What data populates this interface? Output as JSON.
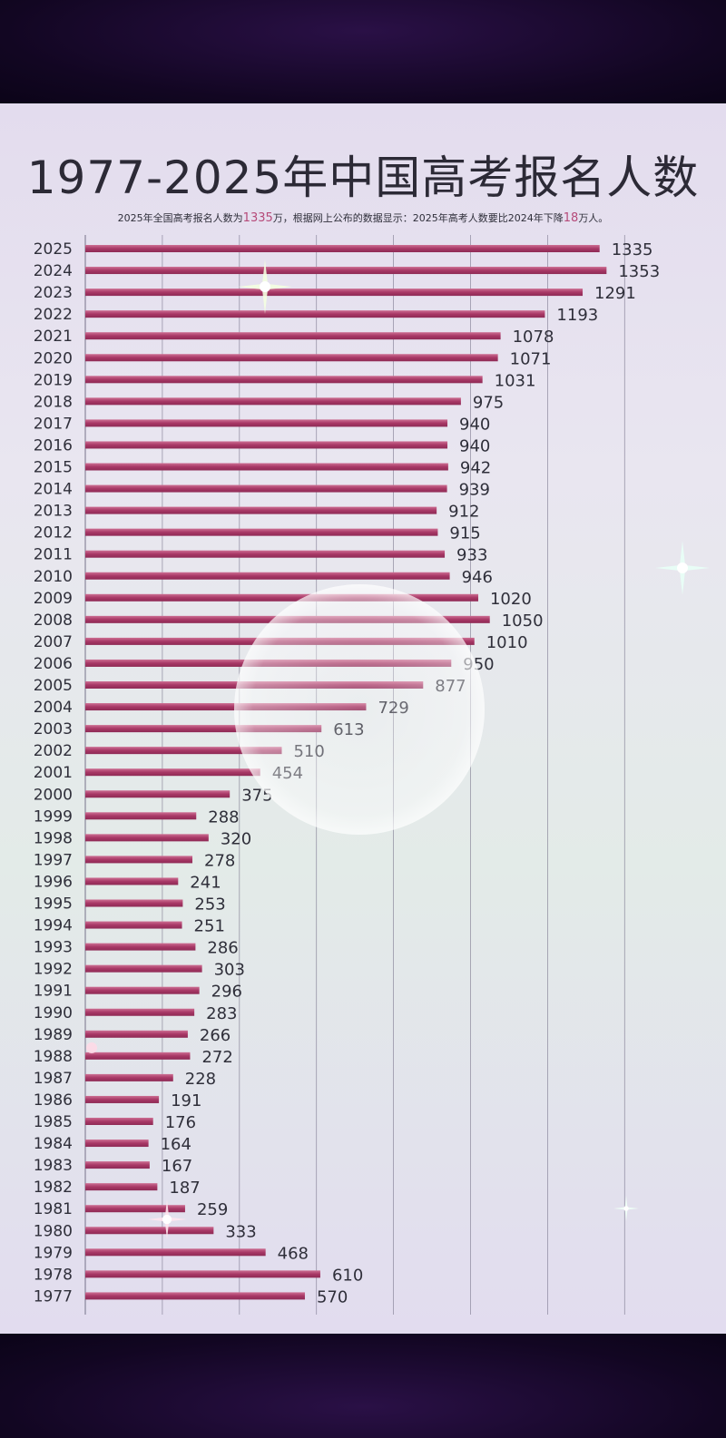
{
  "title": "1977-2025年中国高考报名人数",
  "subtitle": {
    "part1": "2025年全国高考报名人数为",
    "num1": "1335",
    "part2": "万，根据网上公布的数据显示：2025年高考人数要比2024年下降",
    "num2": "18",
    "part3": "万人。"
  },
  "colors": {
    "bar": "#a83866",
    "bar_light": "#cd6f93",
    "grid": "#77738a",
    "label": "#2f2f3a"
  },
  "chart_data": {
    "type": "bar",
    "orientation": "horizontal",
    "title": "1977-2025年中国高考报名人数",
    "xlabel": "",
    "ylabel": "",
    "xlim": [
      0,
      1400
    ],
    "grid": true,
    "gridlines": [
      200,
      400,
      600,
      800,
      1000,
      1200,
      1400
    ],
    "categories": [
      "2025",
      "2024",
      "2023",
      "2022",
      "2021",
      "2020",
      "2019",
      "2018",
      "2017",
      "2016",
      "2015",
      "2014",
      "2013",
      "2012",
      "2011",
      "2010",
      "2009",
      "2008",
      "2007",
      "2006",
      "2005",
      "2004",
      "2003",
      "2002",
      "2001",
      "2000",
      "1999",
      "1998",
      "1997",
      "1996",
      "1995",
      "1994",
      "1993",
      "1992",
      "1991",
      "1990",
      "1989",
      "1988",
      "1987",
      "1986",
      "1985",
      "1984",
      "1983",
      "1982",
      "1981",
      "1980",
      "1979",
      "1978",
      "1977"
    ],
    "values": [
      1335,
      1353,
      1291,
      1193,
      1078,
      1071,
      1031,
      975,
      940,
      940,
      942,
      939,
      912,
      915,
      933,
      946,
      1020,
      1050,
      1010,
      950,
      877,
      729,
      613,
      510,
      454,
      375,
      288,
      320,
      278,
      241,
      253,
      251,
      286,
      303,
      296,
      283,
      266,
      272,
      228,
      191,
      176,
      164,
      167,
      187,
      259,
      333,
      468,
      610,
      570
    ]
  }
}
